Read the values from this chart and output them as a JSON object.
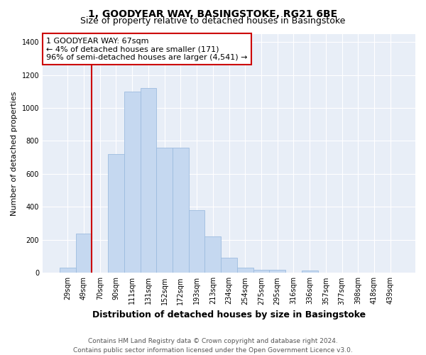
{
  "title": "1, GOODYEAR WAY, BASINGSTOKE, RG21 6BE",
  "subtitle": "Size of property relative to detached houses in Basingstoke",
  "xlabel": "Distribution of detached houses by size in Basingstoke",
  "ylabel": "Number of detached properties",
  "categories": [
    "29sqm",
    "49sqm",
    "70sqm",
    "90sqm",
    "111sqm",
    "131sqm",
    "152sqm",
    "172sqm",
    "193sqm",
    "213sqm",
    "234sqm",
    "254sqm",
    "275sqm",
    "295sqm",
    "316sqm",
    "336sqm",
    "357sqm",
    "377sqm",
    "398sqm",
    "418sqm",
    "439sqm"
  ],
  "values": [
    30,
    240,
    0,
    720,
    1100,
    1120,
    760,
    760,
    380,
    220,
    90,
    30,
    20,
    20,
    0,
    15,
    0,
    0,
    0,
    0,
    0
  ],
  "bar_color": "#c5d8f0",
  "bar_edge_color": "#9dbcdf",
  "vline_x_index": 2,
  "vline_color": "#cc0000",
  "annotation_text_line1": "1 GOODYEAR WAY: 67sqm",
  "annotation_text_line2": "← 4% of detached houses are smaller (171)",
  "annotation_text_line3": "96% of semi-detached houses are larger (4,541) →",
  "annotation_box_facecolor": "#ffffff",
  "annotation_box_edgecolor": "#cc0000",
  "ylim": [
    0,
    1450
  ],
  "yticks": [
    0,
    200,
    400,
    600,
    800,
    1000,
    1200,
    1400
  ],
  "bg_color": "#e8eef7",
  "grid_color": "#ffffff",
  "footer_line1": "Contains HM Land Registry data © Crown copyright and database right 2024.",
  "footer_line2": "Contains public sector information licensed under the Open Government Licence v3.0.",
  "title_fontsize": 10,
  "subtitle_fontsize": 9,
  "ylabel_fontsize": 8,
  "xlabel_fontsize": 9,
  "tick_fontsize": 7,
  "annotation_fontsize": 8,
  "footer_fontsize": 6.5
}
